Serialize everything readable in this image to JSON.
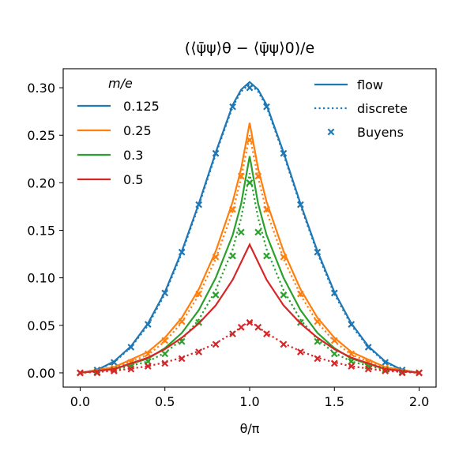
{
  "chart_data": {
    "type": "line",
    "title": "(⟨ψ̄ψ⟩θ − ⟨ψ̄ψ⟩0)/e",
    "xlabel": "θ/π",
    "ylabel": "",
    "xlim": [
      -0.1,
      2.1
    ],
    "ylim": [
      -0.015,
      0.32
    ],
    "xticks": [
      0.0,
      0.5,
      1.0,
      1.5,
      2.0
    ],
    "xtick_labels": [
      "0.0",
      "0.5",
      "1.0",
      "1.5",
      "2.0"
    ],
    "yticks": [
      0.0,
      0.05,
      0.1,
      0.15,
      0.2,
      0.25,
      0.3
    ],
    "ytick_labels": [
      "0.00",
      "0.05",
      "0.10",
      "0.15",
      "0.20",
      "0.25",
      "0.30"
    ],
    "grid": false,
    "legend_mass": {
      "title": "m/e",
      "placement": "top-left",
      "entries": [
        "0.125",
        "0.25",
        "0.3",
        "0.5"
      ]
    },
    "legend_style": {
      "placement": "top-right",
      "entries": [
        "flow",
        "discrete",
        "Buyens"
      ]
    },
    "series": [
      {
        "name": "0.125",
        "color": "#1f77b4",
        "flow": {
          "x": [
            0.0,
            0.1,
            0.2,
            0.3,
            0.4,
            0.5,
            0.6,
            0.7,
            0.8,
            0.9,
            0.95,
            1.0,
            1.05,
            1.1,
            1.2,
            1.3,
            1.4,
            1.5,
            1.6,
            1.7,
            1.8,
            1.9,
            2.0
          ],
          "y": [
            0.0,
            0.003,
            0.012,
            0.028,
            0.052,
            0.085,
            0.128,
            0.178,
            0.232,
            0.282,
            0.298,
            0.306,
            0.298,
            0.282,
            0.232,
            0.178,
            0.128,
            0.085,
            0.052,
            0.028,
            0.012,
            0.003,
            0.0
          ]
        },
        "discrete": {
          "x": [
            0.0,
            0.1,
            0.2,
            0.3,
            0.4,
            0.5,
            0.6,
            0.7,
            0.8,
            0.9,
            0.95,
            1.0,
            1.05,
            1.1,
            1.2,
            1.3,
            1.4,
            1.5,
            1.6,
            1.7,
            1.8,
            1.9,
            2.0
          ],
          "y": [
            0.0,
            0.003,
            0.011,
            0.027,
            0.05,
            0.083,
            0.126,
            0.176,
            0.23,
            0.28,
            0.296,
            0.304,
            0.296,
            0.28,
            0.23,
            0.176,
            0.126,
            0.083,
            0.05,
            0.027,
            0.011,
            0.003,
            0.0
          ]
        },
        "buyens": {
          "x": [
            0.0,
            0.1,
            0.2,
            0.3,
            0.4,
            0.5,
            0.6,
            0.7,
            0.8,
            0.9,
            1.0,
            1.1,
            1.2,
            1.3,
            1.4,
            1.5,
            1.6,
            1.7,
            1.8,
            1.9,
            2.0
          ],
          "y": [
            0.0,
            0.003,
            0.011,
            0.027,
            0.051,
            0.084,
            0.127,
            0.177,
            0.231,
            0.28,
            0.3,
            0.28,
            0.231,
            0.177,
            0.127,
            0.084,
            0.051,
            0.027,
            0.011,
            0.003,
            0.0
          ]
        }
      },
      {
        "name": "0.25",
        "color": "#ff7f0e",
        "flow": {
          "x": [
            0.0,
            0.2,
            0.4,
            0.5,
            0.6,
            0.7,
            0.8,
            0.9,
            0.95,
            1.0,
            1.05,
            1.1,
            1.2,
            1.3,
            1.4,
            1.5,
            1.6,
            1.8,
            2.0
          ],
          "y": [
            0.0,
            0.006,
            0.022,
            0.037,
            0.058,
            0.088,
            0.128,
            0.18,
            0.215,
            0.263,
            0.215,
            0.18,
            0.128,
            0.088,
            0.058,
            0.037,
            0.022,
            0.006,
            0.0
          ]
        },
        "discrete": {
          "x": [
            0.0,
            0.2,
            0.4,
            0.5,
            0.6,
            0.7,
            0.8,
            0.9,
            0.95,
            1.0,
            1.05,
            1.1,
            1.2,
            1.3,
            1.4,
            1.5,
            1.6,
            1.8,
            2.0
          ],
          "y": [
            0.0,
            0.005,
            0.019,
            0.033,
            0.053,
            0.082,
            0.12,
            0.17,
            0.205,
            0.25,
            0.205,
            0.17,
            0.12,
            0.082,
            0.053,
            0.033,
            0.019,
            0.005,
            0.0
          ]
        },
        "buyens": {
          "x": [
            0.0,
            0.1,
            0.2,
            0.3,
            0.4,
            0.5,
            0.6,
            0.7,
            0.8,
            0.9,
            0.95,
            1.0,
            1.05,
            1.1,
            1.2,
            1.3,
            1.4,
            1.5,
            1.6,
            1.7,
            1.8,
            1.9,
            2.0
          ],
          "y": [
            0.0,
            0.001,
            0.005,
            0.011,
            0.02,
            0.034,
            0.054,
            0.083,
            0.122,
            0.172,
            0.207,
            0.245,
            0.207,
            0.172,
            0.122,
            0.083,
            0.054,
            0.034,
            0.02,
            0.011,
            0.005,
            0.001,
            0.0
          ]
        }
      },
      {
        "name": "0.3",
        "color": "#2ca02c",
        "flow": {
          "x": [
            0.0,
            0.2,
            0.4,
            0.5,
            0.6,
            0.7,
            0.8,
            0.9,
            0.95,
            1.0,
            1.05,
            1.1,
            1.2,
            1.3,
            1.4,
            1.5,
            1.6,
            1.8,
            2.0
          ],
          "y": [
            0.0,
            0.004,
            0.015,
            0.026,
            0.042,
            0.066,
            0.1,
            0.145,
            0.178,
            0.228,
            0.178,
            0.145,
            0.1,
            0.066,
            0.042,
            0.026,
            0.015,
            0.004,
            0.0
          ]
        },
        "discrete": {
          "x": [
            0.0,
            0.2,
            0.4,
            0.5,
            0.6,
            0.7,
            0.8,
            0.9,
            0.95,
            1.0,
            1.05,
            1.1,
            1.2,
            1.3,
            1.4,
            1.5,
            1.6,
            1.8,
            2.0
          ],
          "y": [
            0.0,
            0.003,
            0.012,
            0.021,
            0.035,
            0.056,
            0.087,
            0.13,
            0.163,
            0.21,
            0.163,
            0.13,
            0.087,
            0.056,
            0.035,
            0.021,
            0.012,
            0.003,
            0.0
          ]
        },
        "buyens": {
          "x": [
            0.0,
            0.1,
            0.2,
            0.3,
            0.4,
            0.5,
            0.6,
            0.7,
            0.8,
            0.9,
            0.95,
            1.0,
            1.05,
            1.1,
            1.2,
            1.3,
            1.4,
            1.5,
            1.6,
            1.7,
            1.8,
            1.9,
            2.0
          ],
          "y": [
            0.0,
            0.001,
            0.003,
            0.007,
            0.012,
            0.02,
            0.033,
            0.053,
            0.082,
            0.123,
            0.148,
            0.2,
            0.148,
            0.123,
            0.082,
            0.053,
            0.033,
            0.02,
            0.012,
            0.007,
            0.003,
            0.001,
            0.0
          ]
        }
      },
      {
        "name": "0.5",
        "color": "#d62728",
        "flow": {
          "x": [
            0.0,
            0.2,
            0.4,
            0.5,
            0.6,
            0.7,
            0.8,
            0.9,
            1.0,
            1.1,
            1.2,
            1.3,
            1.4,
            1.5,
            1.6,
            1.8,
            2.0
          ],
          "y": [
            0.0,
            0.004,
            0.016,
            0.025,
            0.037,
            0.052,
            0.071,
            0.098,
            0.135,
            0.098,
            0.071,
            0.052,
            0.037,
            0.025,
            0.016,
            0.004,
            0.0
          ]
        },
        "discrete": {
          "x": [
            0.0,
            0.2,
            0.4,
            0.5,
            0.6,
            0.7,
            0.8,
            0.9,
            0.95,
            1.0,
            1.05,
            1.1,
            1.2,
            1.3,
            1.4,
            1.5,
            1.6,
            1.8,
            2.0
          ],
          "y": [
            0.0,
            0.002,
            0.007,
            0.011,
            0.016,
            0.023,
            0.031,
            0.042,
            0.048,
            0.055,
            0.048,
            0.042,
            0.031,
            0.023,
            0.016,
            0.011,
            0.007,
            0.002,
            0.0
          ]
        },
        "buyens": {
          "x": [
            0.0,
            0.1,
            0.2,
            0.3,
            0.4,
            0.5,
            0.6,
            0.7,
            0.8,
            0.9,
            0.95,
            1.0,
            1.05,
            1.1,
            1.2,
            1.3,
            1.4,
            1.5,
            1.6,
            1.7,
            1.8,
            1.9,
            2.0
          ],
          "y": [
            0.0,
            0.0,
            0.002,
            0.004,
            0.007,
            0.01,
            0.015,
            0.022,
            0.03,
            0.041,
            0.048,
            0.053,
            0.048,
            0.041,
            0.03,
            0.022,
            0.015,
            0.01,
            0.007,
            0.004,
            0.002,
            0.0,
            0.0
          ]
        }
      }
    ]
  }
}
